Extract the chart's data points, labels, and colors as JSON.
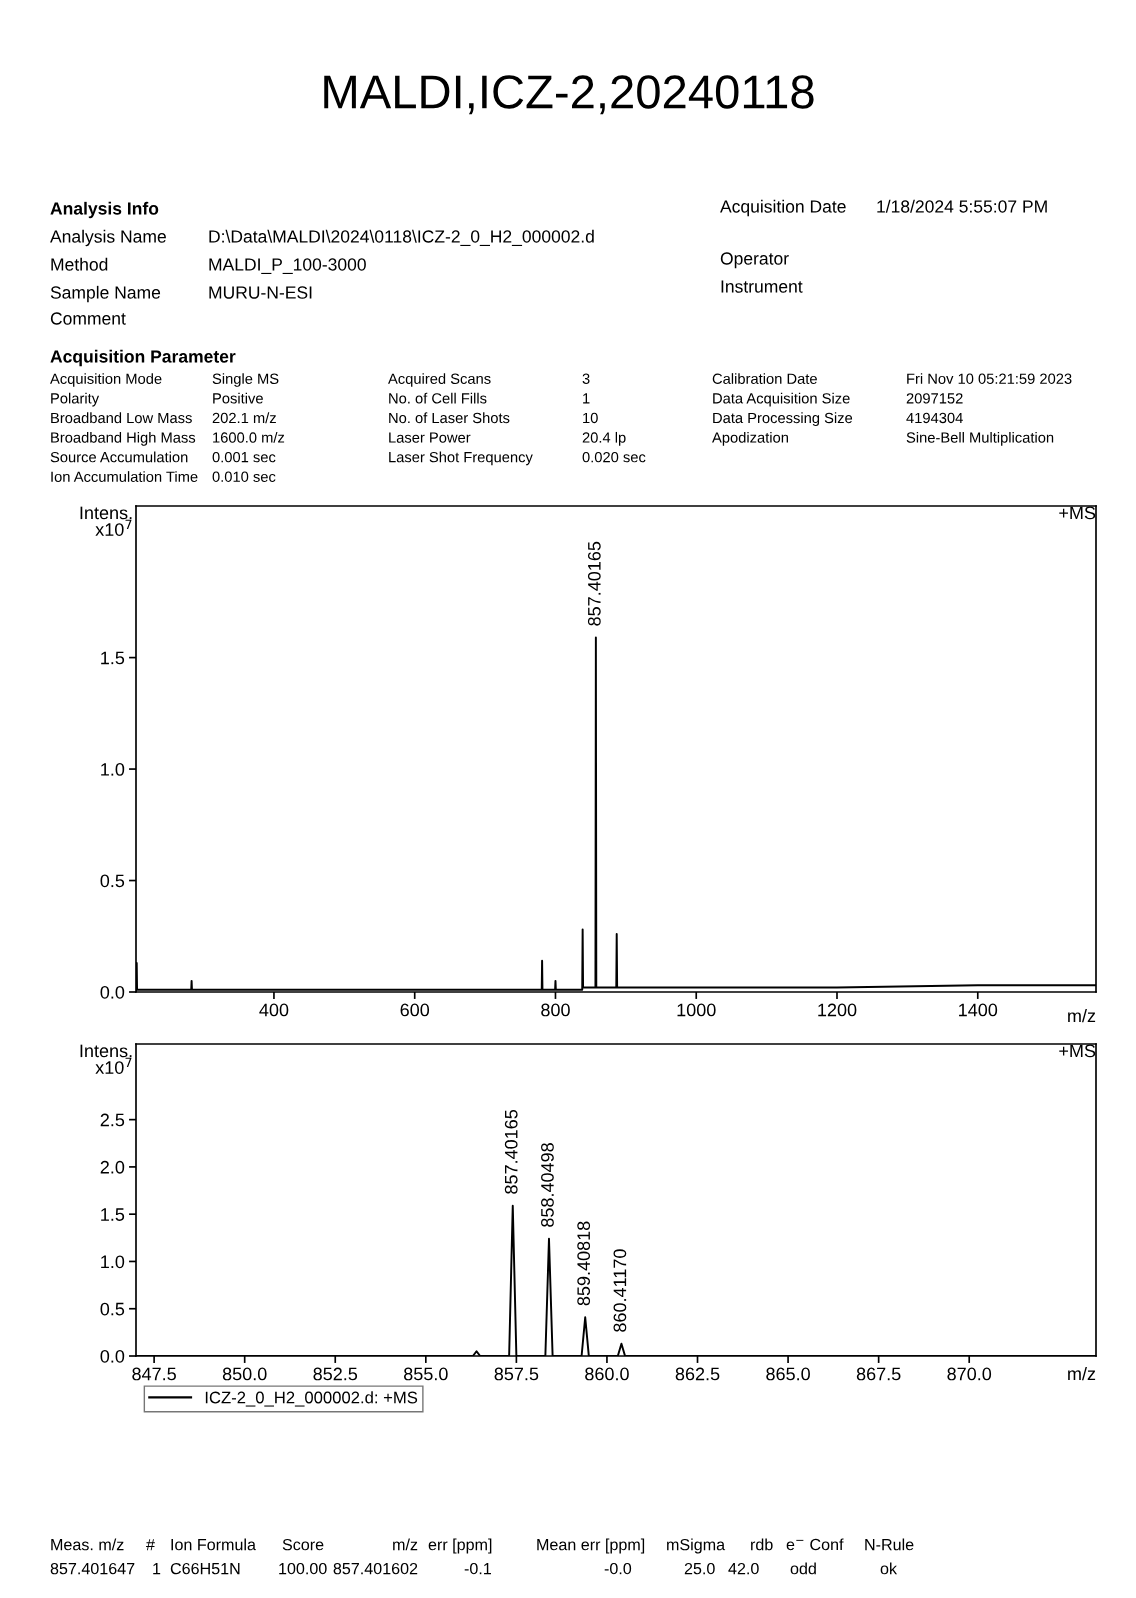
{
  "chart_data": [
    {
      "type": "line",
      "title": "MALDI,ICZ-2,20240118",
      "xlabel": "m/z",
      "ylabel": "Intens.\nx10$^{7}$",
      "xlim": [
        204,
        1568
      ],
      "xticks": [
        400,
        600,
        800,
        1000,
        1200,
        1400
      ],
      "ylim": [
        0,
        2.18
      ],
      "yticks": [
        {
          "value": 0,
          "label": "0.0"
        },
        {
          "value": 0.5,
          "label": "0.5"
        },
        {
          "value": 1.0,
          "label": "1.0"
        },
        {
          "value": 1.5,
          "label": "1.5"
        }
      ],
      "grid": false,
      "legend": false,
      "marker": "none",
      "line_style": "solid",
      "series": [
        {
          "color": "#000000",
          "x": [
            204,
            205,
            205.5,
            250,
            282.5,
            283,
            283.5,
            400,
            600,
            780.5,
            781,
            781.5,
            799.5,
            800,
            800.5,
            838,
            838.6,
            839.2,
            856.8,
            857.4,
            858,
            886.4,
            887,
            887.6,
            1000,
            1200,
            1400,
            1568
          ],
          "values": [
            0,
            0.13,
            0.01,
            0.01,
            0.01,
            0.05,
            0.01,
            0.01,
            0.01,
            0.01,
            0.14,
            0.01,
            0.01,
            0.05,
            0.01,
            0.01,
            0.28,
            0.02,
            0.02,
            1.59,
            0.02,
            0.02,
            0.26,
            0.02,
            0.02,
            0.02,
            0.03,
            0.03
          ]
        }
      ],
      "annotations": [
        "+MS",
        "Analysis Info",
        "Analysis Name",
        "D:\\Data\\MALDI\\2024\\0118\\ICZ-2_0_H2_000002.d",
        "Method",
        "MALDI_P_100-3000",
        "Sample Name",
        "MURU-N-ESI",
        "Comment",
        "Acquisition Date",
        "1/18/2024 5:55:07 PM",
        "Operator",
        "Instrument",
        "Acquisition Parameter",
        "Acquisition Mode",
        "Single MS",
        "Acquired Scans",
        "3",
        "Calibration Date",
        "Fri Nov 10 05:21:59 2023",
        "Polarity",
        "Positive",
        "No. of Cell Fills",
        "1",
        "Data Acquisition Size",
        "2097152",
        "Broadband Low Mass",
        "202.1 m/z",
        "No. of Laser Shots",
        "10",
        "Data Processing Size",
        "4194304",
        "Broadband High Mass",
        "1600.0 m/z",
        "Laser Power",
        "20.4 lp",
        "Apodization",
        "Sine-Bell Multiplication",
        "Source Accumulation",
        "0.001 sec",
        "Laser Shot Frequency",
        "0.020 sec",
        "Ion Accumulation Time",
        "0.010 sec",
        {
          "text": "857.40165",
          "x": 857.4,
          "y": 1.59
        }
      ]
    },
    {
      "type": "line",
      "xlabel": "m/z",
      "ylabel": "Intens.\nx10$^{7}$",
      "xlim": [
        847.0,
        873.5
      ],
      "xticks": [
        {
          "value": 847.5,
          "label": "847.5"
        },
        {
          "value": 850,
          "label": "850.0"
        },
        {
          "value": 852.5,
          "label": "852.5"
        },
        {
          "value": 855,
          "label": "855.0"
        },
        {
          "value": 857.5,
          "label": "857.5"
        },
        {
          "value": 860,
          "label": "860.0"
        },
        {
          "value": 862.5,
          "label": "862.5"
        },
        {
          "value": 865,
          "label": "865.0"
        },
        {
          "value": 867.5,
          "label": "867.5"
        },
        {
          "value": 870,
          "label": "870.0"
        }
      ],
      "ylim": [
        0,
        3.3
      ],
      "yticks": [
        {
          "value": 0,
          "label": "0.0"
        },
        {
          "value": 0.5,
          "label": "0.5"
        },
        {
          "value": 1.0,
          "label": "1.0"
        },
        {
          "value": 1.5,
          "label": "1.5"
        },
        {
          "value": 2.0,
          "label": "2.0"
        },
        {
          "value": 2.5,
          "label": "2.5"
        }
      ],
      "grid": false,
      "legend": "bottom left",
      "marker": "none",
      "line_style": "solid",
      "series": [
        {
          "name": "ICZ-2_0_H2_000002.d: +MS",
          "color": "#000000",
          "x": [
            847.0,
            852,
            856.3,
            856.4,
            856.5,
            857.3,
            857.4,
            857.5,
            858.3,
            858.4,
            858.5,
            859.3,
            859.4,
            859.5,
            860.3,
            860.4,
            860.5,
            865,
            873.5
          ],
          "values": [
            0,
            0,
            0,
            0.05,
            0,
            0,
            1.59,
            0,
            0,
            1.24,
            0,
            0,
            0.41,
            0,
            0,
            0.13,
            0,
            0,
            0
          ]
        }
      ],
      "annotations": [
        "+MS",
        "Meas. m/z",
        "#",
        "Ion Formula",
        "Score",
        "m/z",
        "err [ppm]",
        "Mean err [ppm]",
        "mSigma",
        "rdb",
        "e$^{−}$ Conf",
        "N-Rule",
        "857.401647",
        "1",
        "C66H51N",
        "100.00",
        "857.401602",
        "-0.1",
        "-0.0",
        "25.0",
        "42.0",
        "odd",
        "ok",
        {
          "text": "857.40165",
          "x": 857.4,
          "y": 1.59
        },
        {
          "text": "858.40498",
          "x": 858.4,
          "y": 1.24
        },
        {
          "text": "859.40818",
          "x": 859.4,
          "y": 0.41
        },
        {
          "text": "860.41170",
          "x": 860.4,
          "y": 0.13
        }
      ]
    }
  ]
}
